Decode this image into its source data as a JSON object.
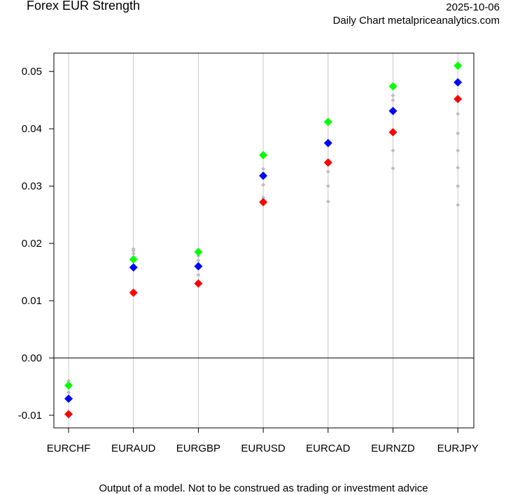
{
  "header": {
    "title": "Forex EUR Strength",
    "date": "2025-10-06",
    "subtitle": "Daily Chart metalpriceanalytics.com"
  },
  "footer": {
    "disclaimer": "Output of a model. Not to be construed as trading or investment advice"
  },
  "colors": {
    "green": "#00ff00",
    "blue": "#0000ff",
    "red": "#ff0000",
    "grey": "#bebebe",
    "gridline": "#c8c8c8"
  },
  "chart_data": {
    "type": "scatter",
    "title": "Forex EUR Strength",
    "xlabel": "",
    "ylabel": "",
    "ylim": [
      -0.0122,
      0.0532
    ],
    "yticks": [
      -0.01,
      0.0,
      0.01,
      0.02,
      0.03,
      0.04,
      0.05
    ],
    "ytick_labels": [
      "-0.01",
      "0.00",
      "0.01",
      "0.02",
      "0.03",
      "0.04",
      "0.05"
    ],
    "zero_line": 0.0,
    "categories": [
      "EURCHF",
      "EURAUD",
      "EURGBP",
      "EURUSD",
      "EURCAD",
      "EURNZD",
      "EURJPY"
    ],
    "series": [
      {
        "name": "green",
        "color": "#00ff00",
        "values": [
          -0.0048,
          0.0172,
          0.0185,
          0.0354,
          0.0412,
          0.0474,
          0.051
        ]
      },
      {
        "name": "blue",
        "color": "#0000ff",
        "values": [
          -0.0071,
          0.0158,
          0.016,
          0.0318,
          0.0375,
          0.0431,
          0.0481
        ]
      },
      {
        "name": "red",
        "color": "#ff0000",
        "values": [
          -0.0098,
          0.0114,
          0.013,
          0.0272,
          0.0341,
          0.0394,
          0.0452
        ]
      }
    ],
    "history": [
      [
        -0.004,
        -0.0045,
        -0.006
      ],
      [
        0.019,
        0.0187,
        0.0182
      ],
      [
        0.0178,
        0.017,
        0.0145
      ],
      [
        0.033,
        0.0302,
        0.028
      ],
      [
        0.0325,
        0.03,
        0.0273
      ],
      [
        0.0458,
        0.045,
        0.0362,
        0.0331
      ],
      [
        0.0426,
        0.0392,
        0.0362,
        0.0332,
        0.03,
        0.0267
      ]
    ]
  }
}
